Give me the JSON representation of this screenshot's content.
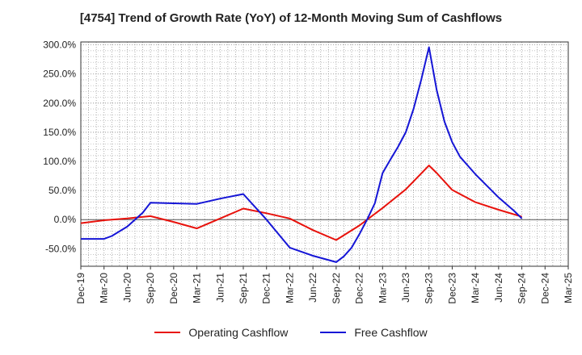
{
  "chart_data": {
    "type": "line",
    "title": "[4754]  Trend of Growth Rate (YoY) of 12-Month Moving Sum of Cashflows",
    "xlabel": "",
    "ylabel": "",
    "x_tick_labels": [
      "Dec-19",
      "Mar-20",
      "Jun-20",
      "Sep-20",
      "Dec-20",
      "Mar-21",
      "Jun-21",
      "Sep-21",
      "Dec-21",
      "Mar-22",
      "Jun-22",
      "Sep-22",
      "Dec-22",
      "Mar-23",
      "Jun-23",
      "Sep-23",
      "Dec-23",
      "Mar-24",
      "Jun-24",
      "Sep-24",
      "Dec-24",
      "Mar-25"
    ],
    "y_tick_labels": [
      "-50.0%",
      "0.0%",
      "50.0%",
      "100.0%",
      "150.0%",
      "200.0%",
      "250.0%",
      "300.0%"
    ],
    "y_ticks": [
      -50,
      0,
      50,
      100,
      150,
      200,
      250,
      300
    ],
    "ylim": [
      -80,
      305
    ],
    "grid": true,
    "legend_position": "bottom",
    "series": [
      {
        "name": "Operating Cashflow",
        "color": "#e8120c",
        "points": [
          [
            "Dec-19",
            -6
          ],
          [
            "Mar-20",
            -1
          ],
          [
            "Jun-20",
            2
          ],
          [
            "Sep-20",
            6
          ],
          [
            "Dec-20",
            -4
          ],
          [
            "Mar-21",
            -15
          ],
          [
            "Jun-21",
            2
          ],
          [
            "Sep-21",
            19
          ],
          [
            "Dec-21",
            11
          ],
          [
            "Mar-22",
            2
          ],
          [
            "Jun-22",
            -18
          ],
          [
            "Sep-22",
            -35
          ],
          [
            "Dec-22",
            -10
          ],
          [
            "Mar-23",
            20
          ],
          [
            "Jun-23",
            52
          ],
          [
            "Sep-23",
            93
          ],
          [
            "Oct-23",
            80
          ],
          [
            "Dec-23",
            51
          ],
          [
            "Mar-24",
            30
          ],
          [
            "Jun-24",
            17
          ],
          [
            "Sep-24",
            5
          ]
        ]
      },
      {
        "name": "Free Cashflow",
        "color": "#1515d6",
        "points": [
          [
            "Dec-19",
            -33
          ],
          [
            "Mar-20",
            -33
          ],
          [
            "Apr-20",
            -28
          ],
          [
            "Jun-20",
            -12
          ],
          [
            "Aug-20",
            12
          ],
          [
            "Sep-20",
            29
          ],
          [
            "Dec-20",
            28
          ],
          [
            "Mar-21",
            27
          ],
          [
            "Jun-21",
            36
          ],
          [
            "Sep-21",
            44
          ],
          [
            "Dec-21",
            0
          ],
          [
            "Mar-22",
            -48
          ],
          [
            "Jun-22",
            -62
          ],
          [
            "Sep-22",
            -73
          ],
          [
            "Oct-22",
            -63
          ],
          [
            "Nov-22",
            -48
          ],
          [
            "Dec-22",
            -25
          ],
          [
            "Jan-23",
            0
          ],
          [
            "Feb-23",
            28
          ],
          [
            "Mar-23",
            80
          ],
          [
            "Apr-23",
            103
          ],
          [
            "May-23",
            125
          ],
          [
            "Jun-23",
            150
          ],
          [
            "Jul-23",
            190
          ],
          [
            "Aug-23",
            240
          ],
          [
            "Sep-23",
            296
          ],
          [
            "Oct-23",
            222
          ],
          [
            "Nov-23",
            168
          ],
          [
            "Dec-23",
            133
          ],
          [
            "Jan-24",
            108
          ],
          [
            "Mar-24",
            78
          ],
          [
            "Jun-24",
            38
          ],
          [
            "Aug-24",
            15
          ],
          [
            "Sep-24",
            2
          ]
        ]
      }
    ]
  }
}
